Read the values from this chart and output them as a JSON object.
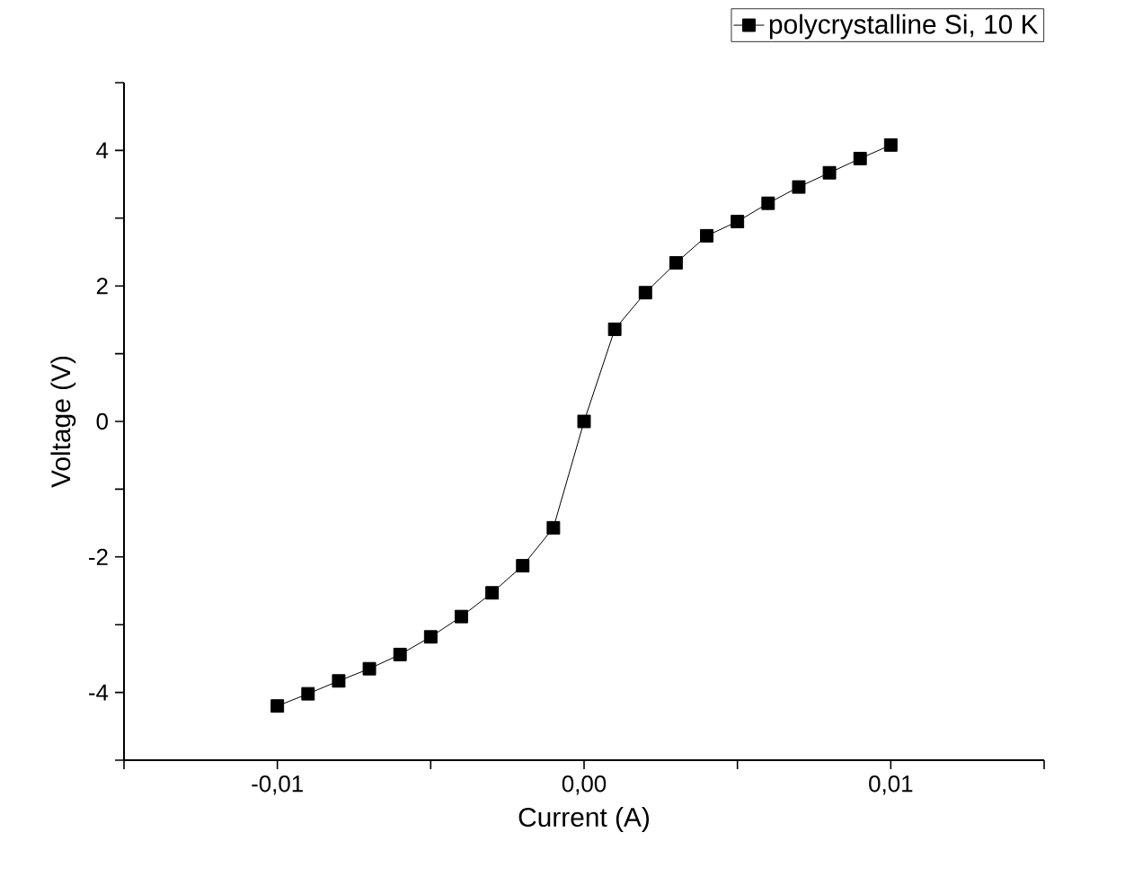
{
  "chart_data": {
    "type": "line",
    "xlabel": "Current (A)",
    "ylabel": "Voltage (V)",
    "x": [
      -0.01,
      -0.009,
      -0.008,
      -0.007,
      -0.006,
      -0.005,
      -0.004,
      -0.003,
      -0.002,
      -0.001,
      0,
      0.001,
      0.002,
      0.003,
      0.004,
      0.005,
      0.006,
      0.007,
      0.008,
      0.009,
      0.01
    ],
    "series": [
      {
        "name": "polycrystalline Si, 10 K",
        "color": "#000000",
        "values": [
          -4.2,
          -4.02,
          -3.83,
          -3.65,
          -3.44,
          -3.18,
          -2.88,
          -2.53,
          -2.13,
          -1.57,
          0,
          1.36,
          1.9,
          2.34,
          2.74,
          2.95,
          3.22,
          3.46,
          3.67,
          3.88,
          4.08
        ]
      }
    ],
    "xlim": [
      -0.015,
      0.015
    ],
    "xticks": [
      {
        "value": -0.015,
        "label": null
      },
      {
        "value": -0.01,
        "label": "-0,01"
      },
      {
        "value": -0.005,
        "label": null
      },
      {
        "value": 0,
        "label": "0,00"
      },
      {
        "value": 0.005,
        "label": null
      },
      {
        "value": 0.01,
        "label": "0,01"
      },
      {
        "value": 0.015,
        "label": null
      }
    ],
    "ylim": [
      -5,
      5
    ],
    "yticks": [
      {
        "value": -5,
        "label": null
      },
      -4,
      {
        "value": -3,
        "label": null
      },
      -2,
      {
        "value": -1,
        "label": null
      },
      0,
      {
        "value": 1,
        "label": null
      },
      2,
      {
        "value": 3,
        "label": null
      },
      4,
      {
        "value": 5,
        "label": null
      }
    ],
    "marker": "square",
    "line_style": "solid",
    "grid": false,
    "legend": "top right"
  }
}
